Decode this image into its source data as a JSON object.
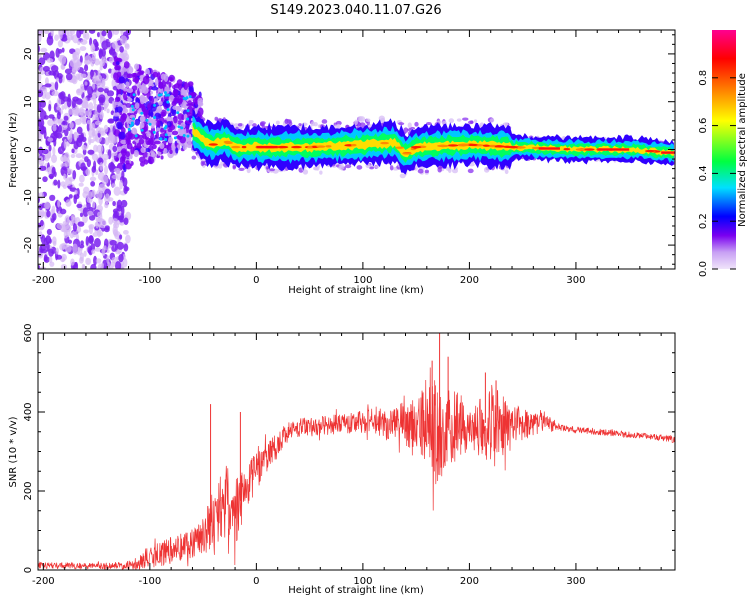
{
  "title": "S149.2023.040.11.07.G26",
  "chart_data": [
    {
      "type": "heatmap",
      "xlabel": "Height of straight line (km)",
      "ylabel": "Frequency (Hz)",
      "xlim": [
        -205,
        393
      ],
      "ylim": [
        -25,
        25
      ],
      "x_ticks": [
        -200,
        -100,
        0,
        100,
        200,
        300
      ],
      "y_ticks": [
        -20,
        -10,
        0,
        10,
        20
      ],
      "colorbar": {
        "label": "Normalized spectral amplitude",
        "range": [
          0.0,
          1.0
        ],
        "ticks": [
          0.0,
          0.2,
          0.4,
          0.6,
          0.8
        ],
        "colors": [
          "#e8d6f6",
          "#7a00f0",
          "#0000ff",
          "#00e0ff",
          "#00ff40",
          "#ffff00",
          "#ff8000",
          "#ff0000",
          "#ff0090"
        ]
      },
      "ridge_frequency_hz": [
        [
          -60,
          4
        ],
        [
          -50,
          2
        ],
        [
          -40,
          1
        ],
        [
          -30,
          2
        ],
        [
          -20,
          0.5
        ],
        [
          0,
          0.5
        ],
        [
          50,
          0.5
        ],
        [
          100,
          1
        ],
        [
          130,
          1.5
        ],
        [
          140,
          -1
        ],
        [
          150,
          0.5
        ],
        [
          200,
          1
        ],
        [
          240,
          0.5
        ],
        [
          300,
          0
        ],
        [
          350,
          0
        ],
        [
          380,
          -0.5
        ],
        [
          393,
          -0.8
        ]
      ],
      "noise_region_km": [
        -205,
        -130
      ]
    },
    {
      "type": "line",
      "xlabel": "Height of straight line (km)",
      "ylabel": "SNR (10 * v/v)",
      "xlim": [
        -205,
        393
      ],
      "ylim": [
        0,
        600
      ],
      "x_ticks": [
        -200,
        -100,
        0,
        100,
        200,
        300
      ],
      "y_ticks": [
        0,
        200,
        400,
        600
      ],
      "color": "#ee3333",
      "envelope": {
        "x": [
          -205,
          -150,
          -120,
          -100,
          -80,
          -60,
          -50,
          -40,
          -30,
          -20,
          -10,
          0,
          10,
          20,
          30,
          40,
          60,
          80,
          100,
          120,
          140,
          150,
          160,
          170,
          180,
          190,
          200,
          210,
          220,
          230,
          240,
          260,
          270,
          280,
          285,
          300,
          320,
          340,
          360,
          380,
          393
        ],
        "mid": [
          12,
          10,
          12,
          30,
          50,
          70,
          90,
          120,
          180,
          150,
          200,
          250,
          290,
          320,
          350,
          360,
          365,
          370,
          375,
          375,
          370,
          365,
          360,
          355,
          360,
          370,
          350,
          370,
          375,
          365,
          360,
          370,
          375,
          365,
          360,
          355,
          350,
          345,
          340,
          335,
          330
        ],
        "amp": [
          8,
          8,
          10,
          30,
          35,
          40,
          50,
          70,
          90,
          90,
          60,
          50,
          40,
          35,
          25,
          25,
          25,
          25,
          30,
          40,
          55,
          70,
          110,
          150,
          100,
          90,
          40,
          90,
          100,
          80,
          60,
          30,
          25,
          15,
          8,
          8,
          8,
          8,
          8,
          8,
          8
        ]
      },
      "peaks": [
        [
          172,
          600
        ],
        [
          180,
          540
        ],
        [
          165,
          530
        ],
        [
          215,
          500
        ],
        [
          225,
          480
        ],
        [
          -43,
          420
        ],
        [
          -15,
          400
        ]
      ]
    }
  ]
}
